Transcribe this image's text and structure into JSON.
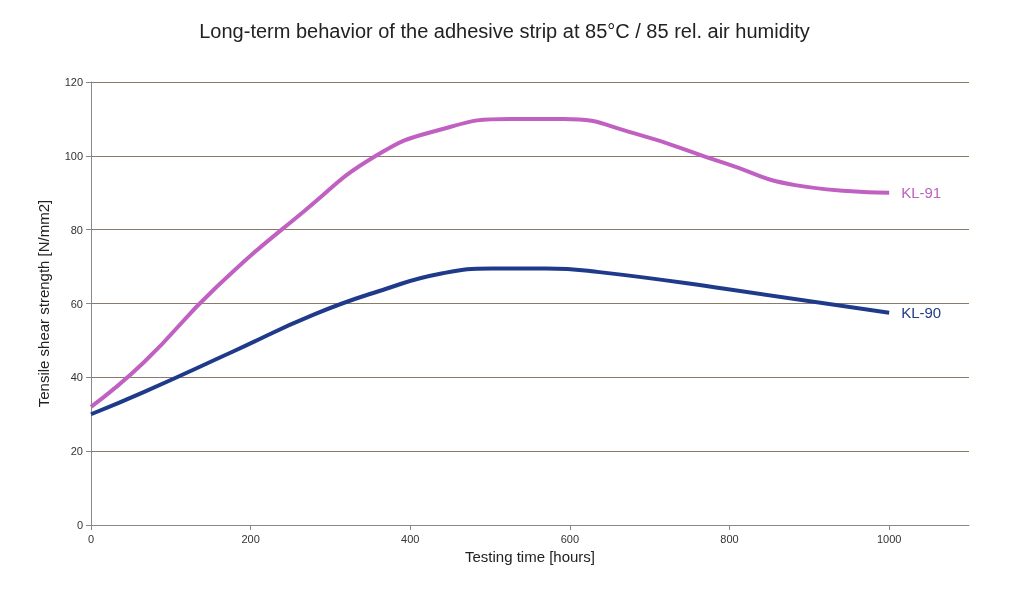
{
  "chart_data": {
    "type": "line",
    "title": "Long-term behavior of the adhesive strip at 85°C / 85 rel. air humidity",
    "xlabel": "Testing time [hours]",
    "ylabel": "Tensile shear strength [N/mm2]",
    "series": [
      {
        "name": "KL-91",
        "color": "#c060c0",
        "x": [
          0,
          66,
          155,
          267,
          357,
          436,
          525,
          592,
          682,
          794,
          884,
          1000
        ],
        "values": [
          32,
          44,
          64,
          85,
          100,
          107,
          110,
          110,
          106,
          98,
          92,
          90
        ]
      },
      {
        "name": "KL-90",
        "color": "#1f3a8a",
        "x": [
          0,
          66,
          178,
          279,
          370,
          436,
          503,
          570,
          637,
          794,
          1000
        ],
        "values": [
          30,
          36,
          47,
          57,
          64,
          68,
          69.5,
          69.5,
          68.5,
          64,
          57.5
        ]
      }
    ],
    "xlim": [
      0,
      1100
    ],
    "xticks": [
      0,
      200,
      400,
      600,
      800,
      1000
    ],
    "ylim": [
      0,
      120
    ],
    "yticks": [
      0,
      20,
      40,
      60,
      80,
      100,
      120
    ],
    "grid": "y",
    "legend": false,
    "marker": "none",
    "line_style": "solid"
  }
}
